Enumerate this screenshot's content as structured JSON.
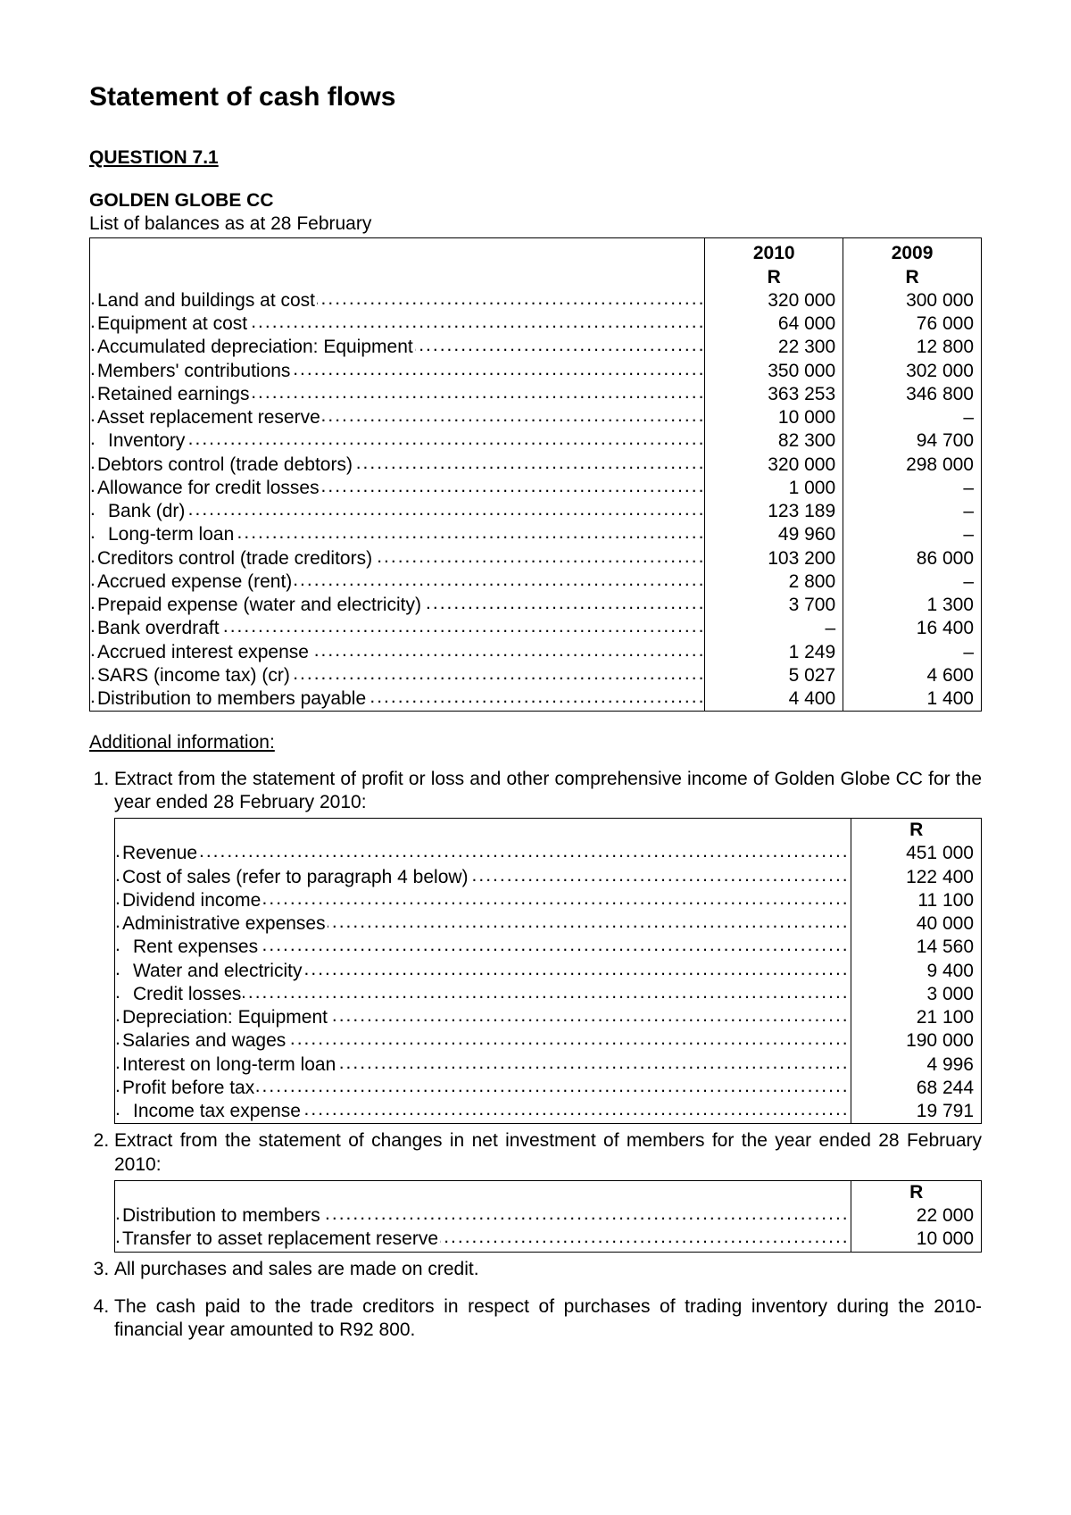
{
  "title": "Statement of cash flows",
  "question_label": "QUESTION 7.1",
  "company": "GOLDEN GLOBE CC",
  "balances_subtitle": "List of balances as at 28 February",
  "additional_heading": "Additional information:",
  "colors": {
    "text": "#000000",
    "background": "#ffffff",
    "border": "#000000"
  },
  "typography": {
    "base_fontsize_pt": 16,
    "title_fontsize_pt": 22,
    "font_family": "Arial"
  },
  "table1": {
    "type": "table",
    "col_headers_year": [
      "2010",
      "2009"
    ],
    "col_headers_unit": [
      "R",
      "R"
    ],
    "rows": [
      {
        "label": "Land and buildings at cost",
        "v": [
          "320 000",
          "300 000"
        ]
      },
      {
        "label": "Equipment at cost",
        "v": [
          "64 000",
          "76 000"
        ]
      },
      {
        "label": "Accumulated depreciation: Equipment",
        "v": [
          "22 300",
          "12 800"
        ]
      },
      {
        "label": "Members' contributions",
        "v": [
          "350 000",
          "302 000"
        ]
      },
      {
        "label": "Retained earnings",
        "v": [
          "363 253",
          "346 800"
        ]
      },
      {
        "label": "Asset replacement reserve",
        "v": [
          "10 000",
          "–"
        ]
      },
      {
        "label": "Inventory",
        "indent": true,
        "v": [
          "82 300",
          "94 700"
        ]
      },
      {
        "label": "Debtors control (trade debtors)",
        "v": [
          "320 000",
          "298 000"
        ]
      },
      {
        "label": "Allowance for credit losses",
        "v": [
          "1 000",
          "–"
        ]
      },
      {
        "label": "Bank (dr)",
        "indent": true,
        "v": [
          "123 189",
          "–"
        ]
      },
      {
        "label": "Long-term loan",
        "indent": true,
        "v": [
          "49 960",
          "–"
        ]
      },
      {
        "label": "Creditors control (trade creditors)",
        "v": [
          "103 200",
          "86 000"
        ]
      },
      {
        "label": "Accrued expense (rent)",
        "v": [
          "2 800",
          "–"
        ]
      },
      {
        "label": "Prepaid expense (water and electricity)",
        "v": [
          "3 700",
          "1 300"
        ]
      },
      {
        "label": "Bank overdraft",
        "v": [
          "–",
          "16 400"
        ]
      },
      {
        "label": "Accrued interest expense",
        "v": [
          "1 249",
          "–"
        ]
      },
      {
        "label": "SARS (income tax) (cr)",
        "v": [
          "5 027",
          "4 600"
        ]
      },
      {
        "label": "Distribution to members payable",
        "v": [
          "4 400",
          "1 400"
        ]
      }
    ]
  },
  "info_items": {
    "i1": "Extract from the statement of profit or loss and other comprehensive income of Golden Globe CC for the year ended 28 February 2010:",
    "i2": "Extract from the statement of changes in net investment of members for the year ended 28 February 2010:",
    "i3": "All purchases and sales are made on credit.",
    "i4": "The cash paid to the trade creditors in respect of purchases of trading inventory during the 2010-financial year amounted to R92 800."
  },
  "table2": {
    "type": "table",
    "col_header_unit": "R",
    "rows": [
      {
        "label": "Revenue",
        "v": "451 000"
      },
      {
        "label": "Cost of sales (refer to paragraph 4 below)",
        "v": "122 400"
      },
      {
        "label": "Dividend income",
        "v": "11 100"
      },
      {
        "label": "Administrative expenses",
        "v": "40 000"
      },
      {
        "label": "Rent expenses",
        "indent": true,
        "v": "14 560"
      },
      {
        "label": "Water and electricity",
        "indent": true,
        "v": "9 400"
      },
      {
        "label": "Credit losses",
        "indent": true,
        "v": "3 000"
      },
      {
        "label": "Depreciation: Equipment",
        "v": "21 100"
      },
      {
        "label": "Salaries and wages",
        "v": "190 000"
      },
      {
        "label": "Interest on long-term loan",
        "v": "4 996"
      },
      {
        "label": "Profit before tax",
        "v": "68 244"
      },
      {
        "label": "Income tax expense",
        "indent": true,
        "v": "19 791"
      }
    ]
  },
  "table3": {
    "type": "table",
    "col_header_unit": "R",
    "rows": [
      {
        "label": "Distribution to members",
        "v": "22 000"
      },
      {
        "label": "Transfer to asset replacement reserve",
        "v": "10 000"
      }
    ]
  }
}
